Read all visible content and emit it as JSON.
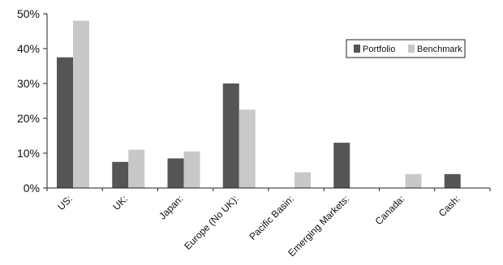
{
  "chart_data": {
    "type": "bar",
    "categories": [
      "US:",
      "UK:",
      "Japan:",
      "Europe (No UK):",
      "Pacific Basin:",
      "Emerging Markets:",
      "Canada:",
      "Cash:"
    ],
    "series": [
      {
        "name": "Portfolio",
        "values": [
          37.5,
          7.5,
          8.5,
          30,
          0,
          13,
          0,
          4
        ],
        "color": "#555555"
      },
      {
        "name": "Benchmark",
        "values": [
          48,
          11,
          10.5,
          22.5,
          4.5,
          0,
          4,
          0
        ],
        "color": "#c8c8c8"
      }
    ],
    "yticks": [
      "0%",
      "10%",
      "20%",
      "30%",
      "40%",
      "50%"
    ],
    "ylim": [
      0,
      50
    ],
    "grid": false,
    "legend_position": "top-right",
    "title": "",
    "xlabel": "",
    "ylabel": ""
  }
}
